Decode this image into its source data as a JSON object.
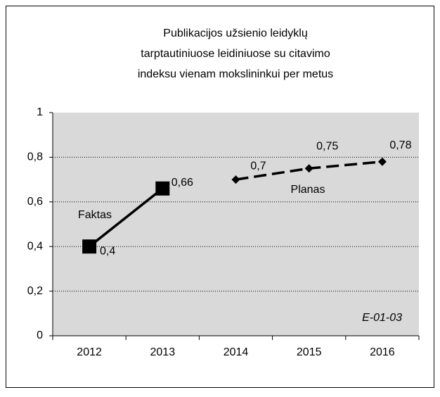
{
  "chart_data": {
    "type": "line",
    "title": [
      "Publikacijos užsienio leidyklų",
      "tarptautiniuose leidiniuose su citavimo",
      "indeksu vienam mokslininkui per metus"
    ],
    "categories": [
      "2012",
      "2013",
      "2014",
      "2015",
      "2016"
    ],
    "series": [
      {
        "name": "Faktas",
        "color": "#000000",
        "marker": "square",
        "dashed": false,
        "values": [
          0.4,
          0.66,
          null,
          null,
          null
        ],
        "value_labels": [
          "0,4",
          "0,66",
          null,
          null,
          null
        ]
      },
      {
        "name": "Planas",
        "color": "#000000",
        "marker": "diamond",
        "dashed": true,
        "values": [
          null,
          null,
          0.7,
          0.75,
          0.78
        ],
        "value_labels": [
          null,
          null,
          "0,7",
          "0,75",
          "0,78"
        ]
      }
    ],
    "ylim": [
      0,
      1
    ],
    "yticks": [
      {
        "value": 0,
        "label": "0"
      },
      {
        "value": 0.2,
        "label": "0,2"
      },
      {
        "value": 0.4,
        "label": "0,4"
      },
      {
        "value": 0.6,
        "label": "0,6"
      },
      {
        "value": 0.8,
        "label": "0,8"
      },
      {
        "value": 1,
        "label": "1"
      }
    ],
    "grid": true,
    "annotation": "E-01-03"
  }
}
